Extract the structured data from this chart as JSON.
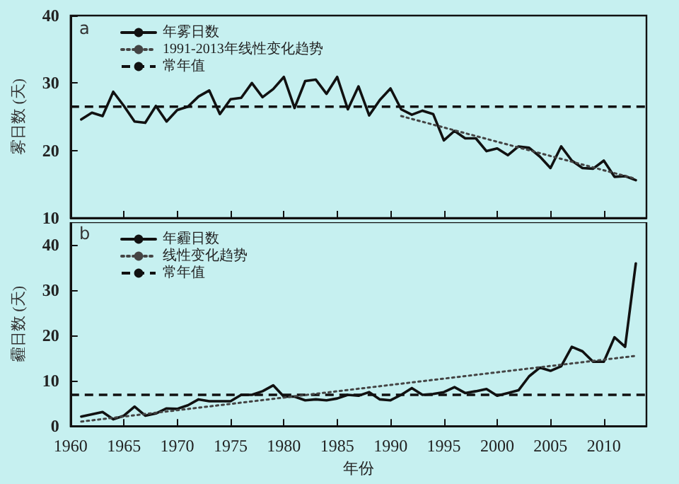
{
  "chart_data": [
    {
      "type": "line",
      "ylabel": "雾日数 (天)",
      "annotations": [
        "a"
      ],
      "xlim": [
        1960,
        2014
      ],
      "xticks": [
        1960,
        1965,
        1970,
        1975,
        1980,
        1985,
        1990,
        1995,
        2000,
        2005,
        2010
      ],
      "ylim": [
        10,
        40
      ],
      "yticks": [
        10,
        20,
        30,
        40
      ],
      "tick_labels": "y",
      "grid": false,
      "legend": "top left",
      "marker": "none",
      "x": [
        1961,
        1962,
        1963,
        1964,
        1965,
        1966,
        1967,
        1968,
        1969,
        1970,
        1971,
        1972,
        1973,
        1974,
        1975,
        1976,
        1977,
        1978,
        1979,
        1980,
        1981,
        1982,
        1983,
        1984,
        1985,
        1986,
        1987,
        1988,
        1989,
        1990,
        1991,
        1992,
        1993,
        1994,
        1995,
        1996,
        1997,
        1998,
        1999,
        2000,
        2001,
        2002,
        2003,
        2004,
        2005,
        2006,
        2007,
        2008,
        2009,
        2010,
        2011,
        2012,
        2013
      ],
      "series": [
        {
          "name": "年雾日数",
          "color": "#111111",
          "line_style": "solid",
          "values": [
            24.6,
            25.6,
            25.1,
            28.7,
            26.6,
            24.3,
            24.1,
            26.6,
            24.3,
            26.0,
            26.5,
            28.0,
            28.9,
            25.4,
            27.6,
            27.8,
            30.0,
            27.9,
            29.1,
            30.9,
            26.3,
            30.3,
            30.5,
            28.4,
            30.9,
            26.1,
            29.5,
            25.2,
            27.5,
            29.2,
            26.1,
            25.3,
            25.9,
            25.4,
            21.5,
            22.9,
            21.8,
            21.8,
            19.9,
            20.3,
            19.3,
            20.6,
            20.4,
            19.1,
            17.4,
            20.6,
            18.5,
            17.4,
            17.3,
            18.5,
            16.1,
            16.2,
            15.6
          ]
        },
        {
          "name": "1991-2013年线性变化趋势",
          "type": "line",
          "color": "#444444",
          "line_style": "dotted",
          "x": [
            1991,
            2013
          ],
          "values": [
            25.1,
            15.8
          ]
        }
      ],
      "ref_lines": [
        {
          "axis": "y",
          "value": 26.5,
          "label": "常年值",
          "color": "#111111",
          "line_style": "dashed"
        }
      ]
    },
    {
      "type": "line",
      "ylabel": "霾日数 (天)",
      "xlabel": "年份",
      "annotations": [
        "b"
      ],
      "xlim": [
        1960,
        2014
      ],
      "xticks": [
        1960,
        1965,
        1970,
        1975,
        1980,
        1985,
        1990,
        1995,
        2000,
        2005,
        2010
      ],
      "ylim": [
        0,
        45
      ],
      "yticks": [
        0,
        10,
        20,
        30,
        40
      ],
      "grid": false,
      "legend": "top left",
      "marker": "none",
      "x": [
        1961,
        1962,
        1963,
        1964,
        1965,
        1966,
        1967,
        1968,
        1969,
        1970,
        1971,
        1972,
        1973,
        1974,
        1975,
        1976,
        1977,
        1978,
        1979,
        1980,
        1981,
        1982,
        1983,
        1984,
        1985,
        1986,
        1987,
        1988,
        1989,
        1990,
        1991,
        1992,
        1993,
        1994,
        1995,
        1996,
        1997,
        1998,
        1999,
        2000,
        2001,
        2002,
        2003,
        2004,
        2005,
        2006,
        2007,
        2008,
        2009,
        2010,
        2011,
        2012,
        2013
      ],
      "series": [
        {
          "name": "年霾日数",
          "color": "#111111",
          "line_style": "solid",
          "values": [
            2.1,
            2.6,
            3.1,
            1.5,
            2.3,
            4.3,
            2.3,
            2.8,
            3.9,
            3.8,
            4.6,
            5.9,
            5.5,
            5.5,
            5.5,
            6.9,
            6.9,
            7.7,
            9.0,
            6.5,
            6.5,
            5.7,
            5.9,
            5.7,
            6.1,
            6.9,
            6.7,
            7.5,
            5.9,
            5.7,
            6.9,
            8.4,
            6.9,
            7.1,
            7.5,
            8.6,
            7.3,
            7.7,
            8.2,
            6.7,
            7.3,
            7.9,
            11.0,
            12.9,
            12.2,
            13.2,
            17.5,
            16.5,
            14.2,
            14.2,
            19.6,
            17.5,
            35.9
          ]
        },
        {
          "name": "线性变化趋势",
          "type": "line",
          "color": "#444444",
          "line_style": "dotted",
          "x": [
            1961,
            2013
          ],
          "values": [
            1.0,
            15.5
          ]
        }
      ],
      "ref_lines": [
        {
          "axis": "y",
          "value": 6.9,
          "label": "常年值",
          "color": "#111111",
          "line_style": "dashed"
        }
      ]
    }
  ]
}
